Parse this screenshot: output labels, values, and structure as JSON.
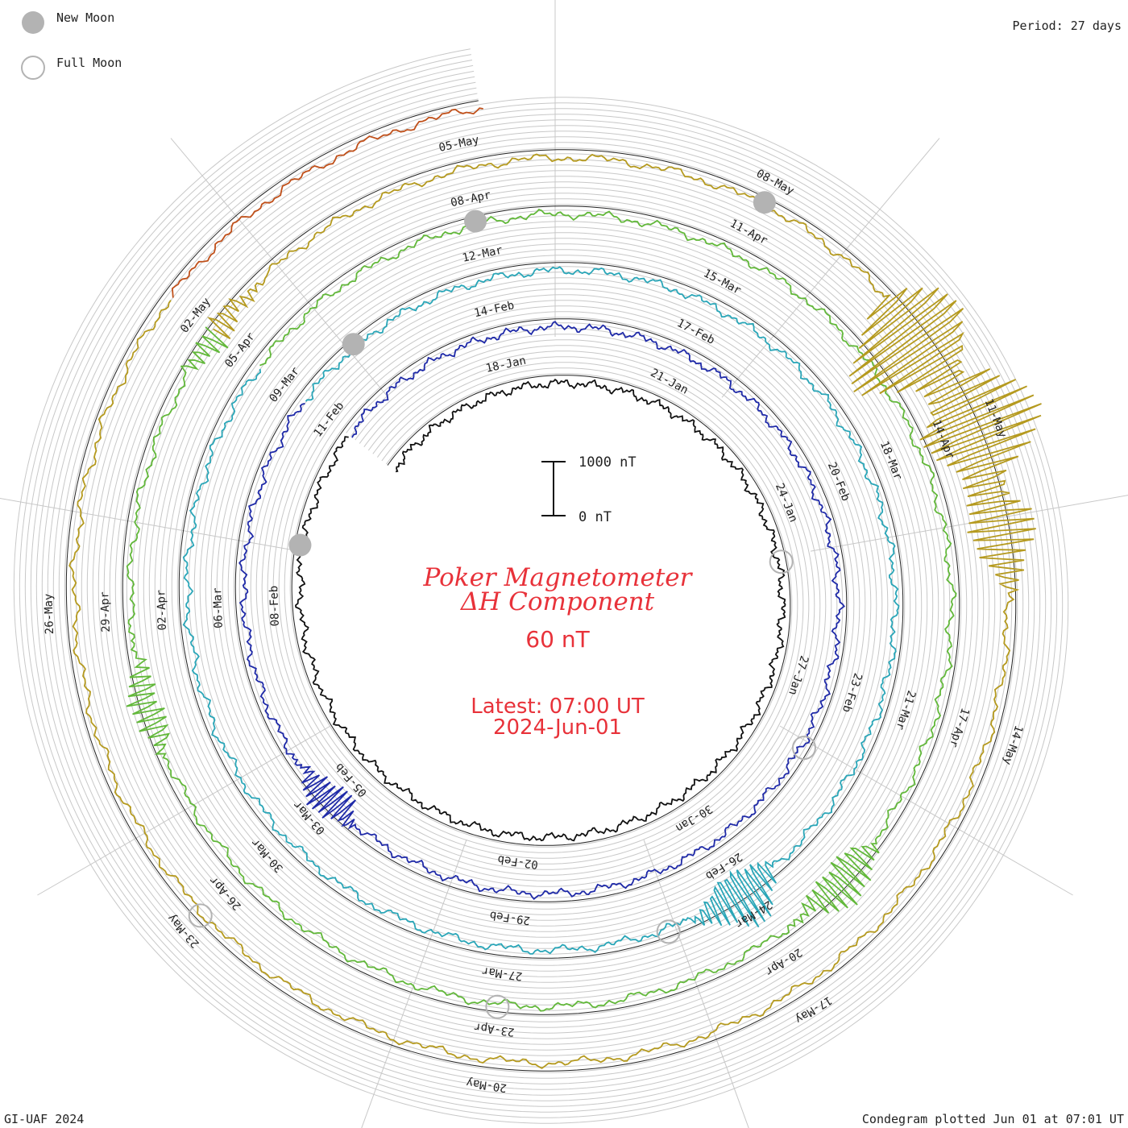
{
  "header": {
    "period_label": "Period: 27 days"
  },
  "legend": [
    {
      "label": "New Moon",
      "style": "filled",
      "color": "#b3b3b3"
    },
    {
      "label": "Full Moon",
      "style": "open",
      "color": "#b3b3b3"
    }
  ],
  "title": {
    "line1": "Poker Magnetometer",
    "line2": "ΔH Component",
    "value": "60 nT",
    "latest_label": "Latest: 07:00 UT",
    "latest_date": "2024-Jun-01"
  },
  "scale_bar": {
    "top_label": "1000 nT",
    "bottom_label": "0 nT"
  },
  "footer": {
    "left": "GI-UAF 2024",
    "right": "Condegram plotted Jun 01 at 07:01 UT"
  },
  "chart_data": {
    "type": "line",
    "variant": "spiral condegram",
    "period_days": 27,
    "start_date": "2024-01-15",
    "end_date": "2024-06-01",
    "grid": true,
    "rotations": [
      {
        "color": "#111111",
        "tick_labels": [
          "18-Jan",
          "21-Jan",
          "24-Jan",
          "27-Jan",
          "30-Jan",
          "02-Feb",
          "05-Feb",
          "08-Feb",
          "11-Feb"
        ]
      },
      {
        "color": "#1f2aa8",
        "tick_labels": [
          "14-Feb",
          "17-Feb",
          "20-Feb",
          "23-Feb",
          "26-Feb",
          "29-Feb",
          "03-Mar",
          "06-Mar",
          "09-Mar"
        ]
      },
      {
        "color": "#2aa6b8",
        "tick_labels": [
          "12-Mar",
          "15-Mar",
          "18-Mar",
          "21-Mar",
          "24-Mar",
          "27-Mar",
          "30-Mar",
          "02-Apr",
          "05-Apr"
        ]
      },
      {
        "color": "#62b83a",
        "tick_labels": [
          "08-Apr",
          "11-Apr",
          "14-Apr",
          "17-Apr",
          "20-Apr",
          "23-Apr",
          "26-Apr",
          "29-Apr",
          "02-May"
        ]
      },
      {
        "color": "#b59a1f",
        "tick_labels": [
          "05-May",
          "08-May",
          "11-May",
          "14-May",
          "17-May",
          "20-May",
          "23-May",
          "26-May"
        ]
      },
      {
        "color": "#c0501a",
        "tick_labels": []
      }
    ],
    "new_moons": [
      "2024-02-09",
      "2024-03-10",
      "2024-04-08",
      "2024-05-08"
    ],
    "full_moons": [
      "2024-01-25",
      "2024-02-24",
      "2024-03-25",
      "2024-04-23",
      "2024-05-23"
    ],
    "disturbances": [
      {
        "date": "2024-05-10",
        "amplitude_nT": 1600
      },
      {
        "date": "2024-05-11",
        "amplitude_nT": 1400
      },
      {
        "date": "2024-05-12",
        "amplitude_nT": 700
      },
      {
        "date": "2024-04-19",
        "amplitude_nT": 500
      },
      {
        "date": "2024-03-24",
        "amplitude_nT": 700
      },
      {
        "date": "2024-03-03",
        "amplitude_nT": 400
      },
      {
        "date": "2024-04-28",
        "amplitude_nT": 350
      },
      {
        "date": "2024-05-02",
        "amplitude_nT": 300
      }
    ]
  }
}
